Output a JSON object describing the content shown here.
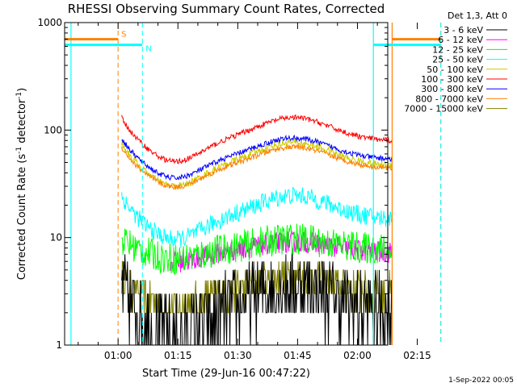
{
  "chart_data": {
    "type": "line",
    "title": "RHESSI Observing Summary Count Rates, Corrected",
    "xlabel": "Start Time (29-Jun-16 00:47:22)",
    "ylabel": "Corrected Count Rate (s⁻¹ detector⁻¹)",
    "ylabel_parts": [
      "Corrected Count Rate (s",
      "-1",
      " detector",
      "-1",
      ")"
    ],
    "y_scale": "log",
    "ylim": [
      1,
      1000
    ],
    "xlim_minutes_from_0100": [
      -13.4,
      67.6
    ],
    "x_ticks": [
      {
        "label": "01:00",
        "min": 0
      },
      {
        "label": "01:15",
        "min": 15
      },
      {
        "label": "01:30",
        "min": 30
      },
      {
        "label": "01:45",
        "min": 45
      },
      {
        "label": "02:00",
        "min": 60
      },
      {
        "label": "02:15",
        "min": 75
      }
    ],
    "y_ticks": [
      {
        "label": "1",
        "value": 1
      },
      {
        "label": "10",
        "value": 10
      },
      {
        "label": "100",
        "value": 100
      },
      {
        "label": "1000",
        "value": 1000
      }
    ],
    "legend_header": "Det 1,3, Att 0",
    "legend_placement": "top-right outside",
    "series": [
      {
        "name": "3 - 6 keV",
        "color": "#000000",
        "base": 2.2,
        "amp": 0.25,
        "noise": 1.0,
        "floor": 1.0,
        "quantized": true
      },
      {
        "name": "6 - 12 keV",
        "color": "#ff00ff",
        "base": 7.5,
        "amp": 0.1,
        "noise": 0.2,
        "start": 13
      },
      {
        "name": "12 - 25 keV",
        "color": "#00ff00",
        "base": 8.0,
        "amp": 0.1,
        "noise": 0.3
      },
      {
        "name": "25 - 50 keV",
        "color": "#00ffff",
        "base": 16,
        "amp": 0.22,
        "noise": 0.17
      },
      {
        "name": "50 - 100 keV",
        "color": "#cccc00",
        "base": 50,
        "amp": 0.22,
        "noise": 0.07
      },
      {
        "name": "100 - 300 keV",
        "color": "#ff0000",
        "base": 85,
        "amp": 0.22,
        "noise": 0.05
      },
      {
        "name": "300 - 800 keV",
        "color": "#0000ff",
        "base": 57,
        "amp": 0.2,
        "noise": 0.05
      },
      {
        "name": "800 - 7000 keV",
        "color": "#ff8000",
        "base": 47,
        "amp": 0.2,
        "noise": 0.05
      },
      {
        "name": "7000 - 15000 keV",
        "color": "#808000",
        "base": 3.2,
        "amp": 0.15,
        "noise": 0.35,
        "quantized": true
      }
    ],
    "data_range_minutes": [
      0.9,
      68.7
    ],
    "annotations": [
      {
        "label": "S",
        "color": "#ff8000",
        "bar_start": -13.4,
        "bar_end": 0.0,
        "marker": 0.0,
        "bar2_start": 68.7,
        "marker2": 80.9
      },
      {
        "label": "N",
        "color": "#00ffff",
        "bar_start": -13.4,
        "bar_end": 6.1,
        "marker": 6.1,
        "bar2_start": 64.0,
        "marker2": 80.9
      }
    ],
    "vertical_lines": [
      {
        "min": -11.8,
        "color": "#00ffff",
        "style": "solid"
      },
      {
        "min": 64.0,
        "color": "#00ffff",
        "style": "solid"
      },
      {
        "min": 68.7,
        "color": "#ff8000",
        "style": "solid"
      }
    ],
    "footer": "1-Sep-2022 00:05"
  }
}
